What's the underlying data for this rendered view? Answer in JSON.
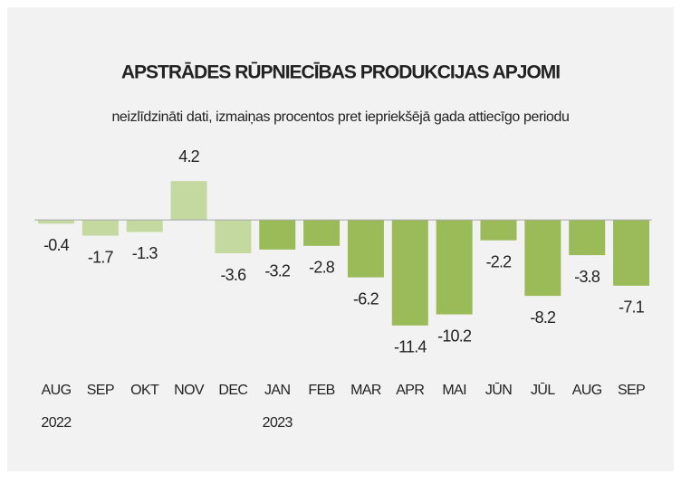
{
  "chart_data": {
    "type": "bar",
    "title": "APSTRĀDES RŪPNIECĪBAS PRODUKCIJAS APJOMI",
    "subtitle": "neizlīdzināti dati, izmaiņas procentos pret iepriekšējā gada attiecīgo periodu",
    "categories": [
      "AUG 2022",
      "SEP",
      "OKT",
      "NOV",
      "DEC",
      "JAN 2023",
      "FEB",
      "MAR",
      "APR",
      "MAI",
      "JŪN",
      "JŪL",
      "AUG",
      "SEP"
    ],
    "values": [
      -0.4,
      -1.7,
      -1.3,
      4.2,
      -3.6,
      -3.2,
      -2.8,
      -6.2,
      -11.4,
      -10.2,
      -2.2,
      -8.2,
      -3.8,
      -7.1
    ],
    "colors": [
      "#c4d9a0",
      "#c4d9a0",
      "#c4d9a0",
      "#c4d9a0",
      "#c4d9a0",
      "#9bbb59",
      "#9bbb59",
      "#9bbb59",
      "#9bbb59",
      "#9bbb59",
      "#9bbb59",
      "#9bbb59",
      "#9bbb59",
      "#9bbb59"
    ],
    "ylim": [
      -12,
      5
    ]
  }
}
